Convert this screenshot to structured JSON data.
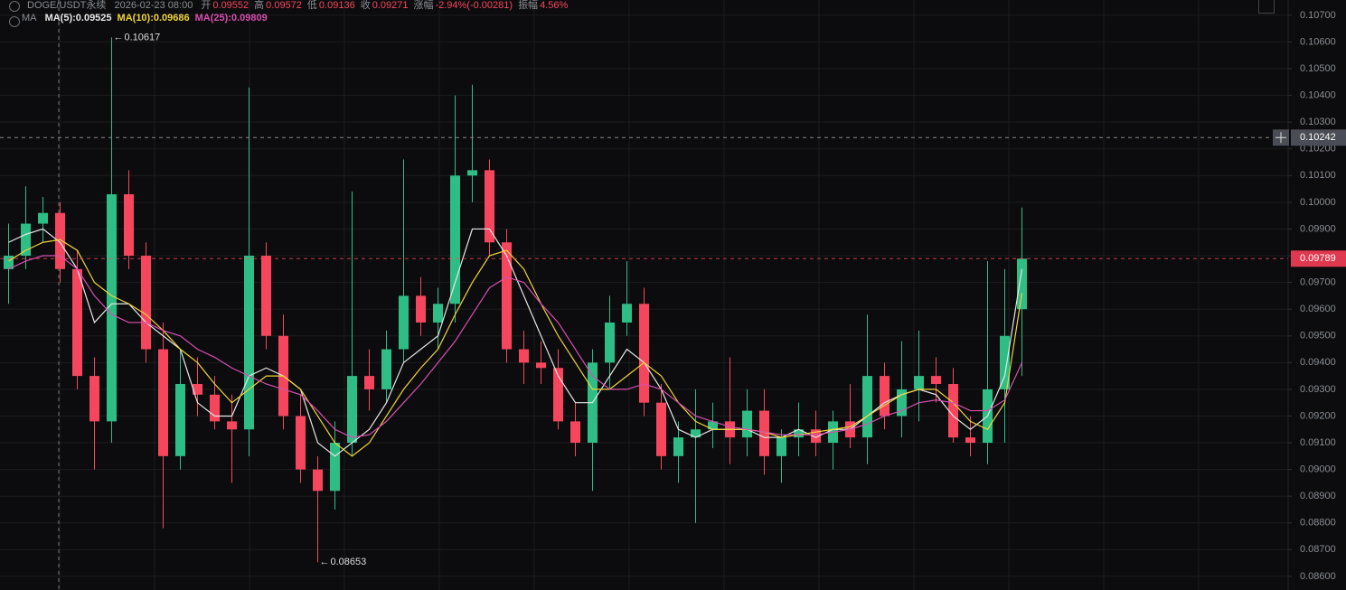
{
  "chart_data": {
    "type": "candlestick",
    "info": {
      "symbol": "DOGE/USDT永续",
      "time": "2026-02-23 08:00",
      "fields": [
        {
          "label": "开",
          "value": "0.09552"
        },
        {
          "label": "高",
          "value": "0.09572"
        },
        {
          "label": "低",
          "value": "0.09136"
        },
        {
          "label": "收",
          "value": "0.09271"
        },
        {
          "label": "涨幅",
          "value": "-2.94%(-0.00281)"
        },
        {
          "label": "振幅",
          "value": "4.56%"
        }
      ],
      "indicator": "MA"
    },
    "up_color": "#2ebd85",
    "down_color": "#f6465d",
    "open": [
      0.0975,
      0.098,
      0.0992,
      0.0996,
      0.0975,
      0.0935,
      0.0918,
      0.1003,
      0.098,
      0.0945,
      0.0905,
      0.0932,
      0.0928,
      0.0918,
      0.0915,
      0.098,
      0.095,
      0.092,
      0.09,
      0.0892,
      0.091,
      0.0935,
      0.093,
      0.0945,
      0.0965,
      0.0955,
      0.0962,
      0.101,
      0.1012,
      0.0985,
      0.0945,
      0.094,
      0.0938,
      0.0918,
      0.091,
      0.094,
      0.0955,
      0.0962,
      0.0925,
      0.0905,
      0.0912,
      0.0915,
      0.0918,
      0.0912,
      0.0922,
      0.0905,
      0.0912,
      0.0915,
      0.091,
      0.0918,
      0.0912,
      0.0935,
      0.092,
      0.093,
      0.0935,
      0.0932,
      0.0912,
      0.091,
      0.093,
      0.096
    ],
    "high": [
      0.0992,
      0.1006,
      0.1002,
      0.1,
      0.0982,
      0.0942,
      0.10617,
      0.1012,
      0.0985,
      0.0955,
      0.0945,
      0.0942,
      0.0935,
      0.0928,
      0.1043,
      0.0985,
      0.0958,
      0.0928,
      0.0905,
      0.0918,
      0.1004,
      0.0945,
      0.0952,
      0.1016,
      0.0972,
      0.0968,
      0.104,
      0.1044,
      0.1016,
      0.099,
      0.0952,
      0.0948,
      0.0945,
      0.0925,
      0.0945,
      0.0965,
      0.0978,
      0.0968,
      0.0932,
      0.0918,
      0.093,
      0.0925,
      0.0942,
      0.093,
      0.093,
      0.0915,
      0.0925,
      0.0922,
      0.0922,
      0.0932,
      0.0958,
      0.094,
      0.0948,
      0.0952,
      0.0942,
      0.0938,
      0.092,
      0.0978,
      0.0975,
      0.0998
    ],
    "low": [
      0.0962,
      0.0975,
      0.0985,
      0.097,
      0.093,
      0.09,
      0.091,
      0.0975,
      0.094,
      0.0878,
      0.09,
      0.092,
      0.0915,
      0.0895,
      0.0905,
      0.0945,
      0.0915,
      0.0895,
      0.08653,
      0.0885,
      0.0905,
      0.0922,
      0.0925,
      0.094,
      0.095,
      0.0945,
      0.0955,
      0.1,
      0.098,
      0.094,
      0.0932,
      0.0932,
      0.0915,
      0.0905,
      0.0892,
      0.093,
      0.095,
      0.092,
      0.09,
      0.0895,
      0.088,
      0.0908,
      0.0902,
      0.0905,
      0.0898,
      0.0895,
      0.0905,
      0.0905,
      0.09,
      0.0908,
      0.0902,
      0.0915,
      0.0912,
      0.0918,
      0.0925,
      0.091,
      0.0905,
      0.0902,
      0.091,
      0.0935
    ],
    "close": [
      0.098,
      0.0992,
      0.0996,
      0.0975,
      0.0935,
      0.0918,
      0.1003,
      0.098,
      0.0945,
      0.0905,
      0.0932,
      0.0928,
      0.0918,
      0.0915,
      0.098,
      0.095,
      0.092,
      0.09,
      0.0892,
      0.091,
      0.0935,
      0.093,
      0.0945,
      0.0965,
      0.0955,
      0.0962,
      0.101,
      0.1012,
      0.0985,
      0.0945,
      0.094,
      0.0938,
      0.0918,
      0.091,
      0.094,
      0.0955,
      0.0962,
      0.0925,
      0.0905,
      0.0912,
      0.0915,
      0.0918,
      0.0912,
      0.0922,
      0.0905,
      0.0912,
      0.0915,
      0.091,
      0.0918,
      0.0912,
      0.0935,
      0.092,
      0.093,
      0.0935,
      0.0932,
      0.0912,
      0.091,
      0.093,
      0.095,
      0.09789
    ],
    "series": [
      {
        "name": "MA(5):0.09525",
        "color": "#e6e6e6",
        "values": [
          0.0985,
          0.0988,
          0.099,
          0.0985,
          0.0975,
          0.0955,
          0.0962,
          0.0962,
          0.0955,
          0.095,
          0.0945,
          0.0925,
          0.092,
          0.092,
          0.0935,
          0.0938,
          0.0935,
          0.093,
          0.091,
          0.0905,
          0.091,
          0.0915,
          0.0925,
          0.094,
          0.0945,
          0.095,
          0.097,
          0.099,
          0.099,
          0.098,
          0.0965,
          0.095,
          0.0935,
          0.0925,
          0.0925,
          0.0935,
          0.0945,
          0.094,
          0.093,
          0.0915,
          0.0912,
          0.0915,
          0.0915,
          0.0915,
          0.0912,
          0.0912,
          0.0915,
          0.0912,
          0.0915,
          0.0915,
          0.092,
          0.0925,
          0.0928,
          0.093,
          0.0928,
          0.092,
          0.0915,
          0.092,
          0.0935,
          0.0975
        ]
      },
      {
        "name": "MA(10):0.09686",
        "color": "#f0d43a",
        "values": [
          0.0978,
          0.0982,
          0.0985,
          0.0986,
          0.0982,
          0.097,
          0.0965,
          0.0962,
          0.0958,
          0.0952,
          0.0945,
          0.094,
          0.0932,
          0.0925,
          0.093,
          0.0935,
          0.0935,
          0.093,
          0.092,
          0.091,
          0.0905,
          0.091,
          0.092,
          0.093,
          0.0938,
          0.0945,
          0.0958,
          0.097,
          0.098,
          0.0982,
          0.0975,
          0.0962,
          0.095,
          0.094,
          0.093,
          0.093,
          0.0935,
          0.094,
          0.0935,
          0.0925,
          0.0918,
          0.0915,
          0.0915,
          0.0915,
          0.0914,
          0.0912,
          0.0913,
          0.0914,
          0.0915,
          0.0916,
          0.092,
          0.0924,
          0.0928,
          0.093,
          0.093,
          0.0925,
          0.0918,
          0.0915,
          0.0925,
          0.0966
        ]
      },
      {
        "name": "MA(25):0.09809",
        "color": "#d84fb0",
        "values": [
          0.0975,
          0.0978,
          0.098,
          0.098,
          0.0975,
          0.0965,
          0.0958,
          0.0955,
          0.0955,
          0.0952,
          0.095,
          0.0945,
          0.0942,
          0.0938,
          0.0935,
          0.0932,
          0.093,
          0.0928,
          0.0922,
          0.0915,
          0.0912,
          0.0913,
          0.0918,
          0.0925,
          0.0932,
          0.094,
          0.0948,
          0.0958,
          0.0968,
          0.0972,
          0.097,
          0.0962,
          0.0955,
          0.0945,
          0.0935,
          0.093,
          0.093,
          0.0932,
          0.093,
          0.0925,
          0.092,
          0.0918,
          0.0916,
          0.0915,
          0.0914,
          0.0913,
          0.0913,
          0.0913,
          0.0914,
          0.0915,
          0.0917,
          0.092,
          0.0922,
          0.0925,
          0.0926,
          0.0925,
          0.0922,
          0.0922,
          0.0926,
          0.094
        ]
      }
    ],
    "ylim": [
      0.08549,
      0.10757
    ],
    "yticks": [
      {
        "value": 0.107,
        "label": "0.10700"
      },
      {
        "value": 0.106,
        "label": "0.10600"
      },
      {
        "value": 0.105,
        "label": "0.10500"
      },
      {
        "value": 0.104,
        "label": "0.10400"
      },
      {
        "value": 0.103,
        "label": "0.10300"
      },
      {
        "value": 0.102,
        "label": "0.10200"
      },
      {
        "value": 0.101,
        "label": "0.10100"
      },
      {
        "value": 0.1,
        "label": "0.10000"
      },
      {
        "value": 0.099,
        "label": "0.09900"
      },
      {
        "value": 0.098,
        "label": "0.09800"
      },
      {
        "value": 0.097,
        "label": "0.09700"
      },
      {
        "value": 0.096,
        "label": "0.09600"
      },
      {
        "value": 0.095,
        "label": "0.09500"
      },
      {
        "value": 0.094,
        "label": "0.09400"
      },
      {
        "value": 0.093,
        "label": "0.09300"
      },
      {
        "value": 0.092,
        "label": "0.09200"
      },
      {
        "value": 0.091,
        "label": "0.09100"
      },
      {
        "value": 0.09,
        "label": "0.09000"
      },
      {
        "value": 0.089,
        "label": "0.08900"
      },
      {
        "value": 0.088,
        "label": "0.08800"
      },
      {
        "value": 0.087,
        "label": "0.08700"
      },
      {
        "value": 0.086,
        "label": "0.08600"
      }
    ],
    "grid": true,
    "crosshair_price": 0.10242,
    "last_price": 0.09789
  }
}
